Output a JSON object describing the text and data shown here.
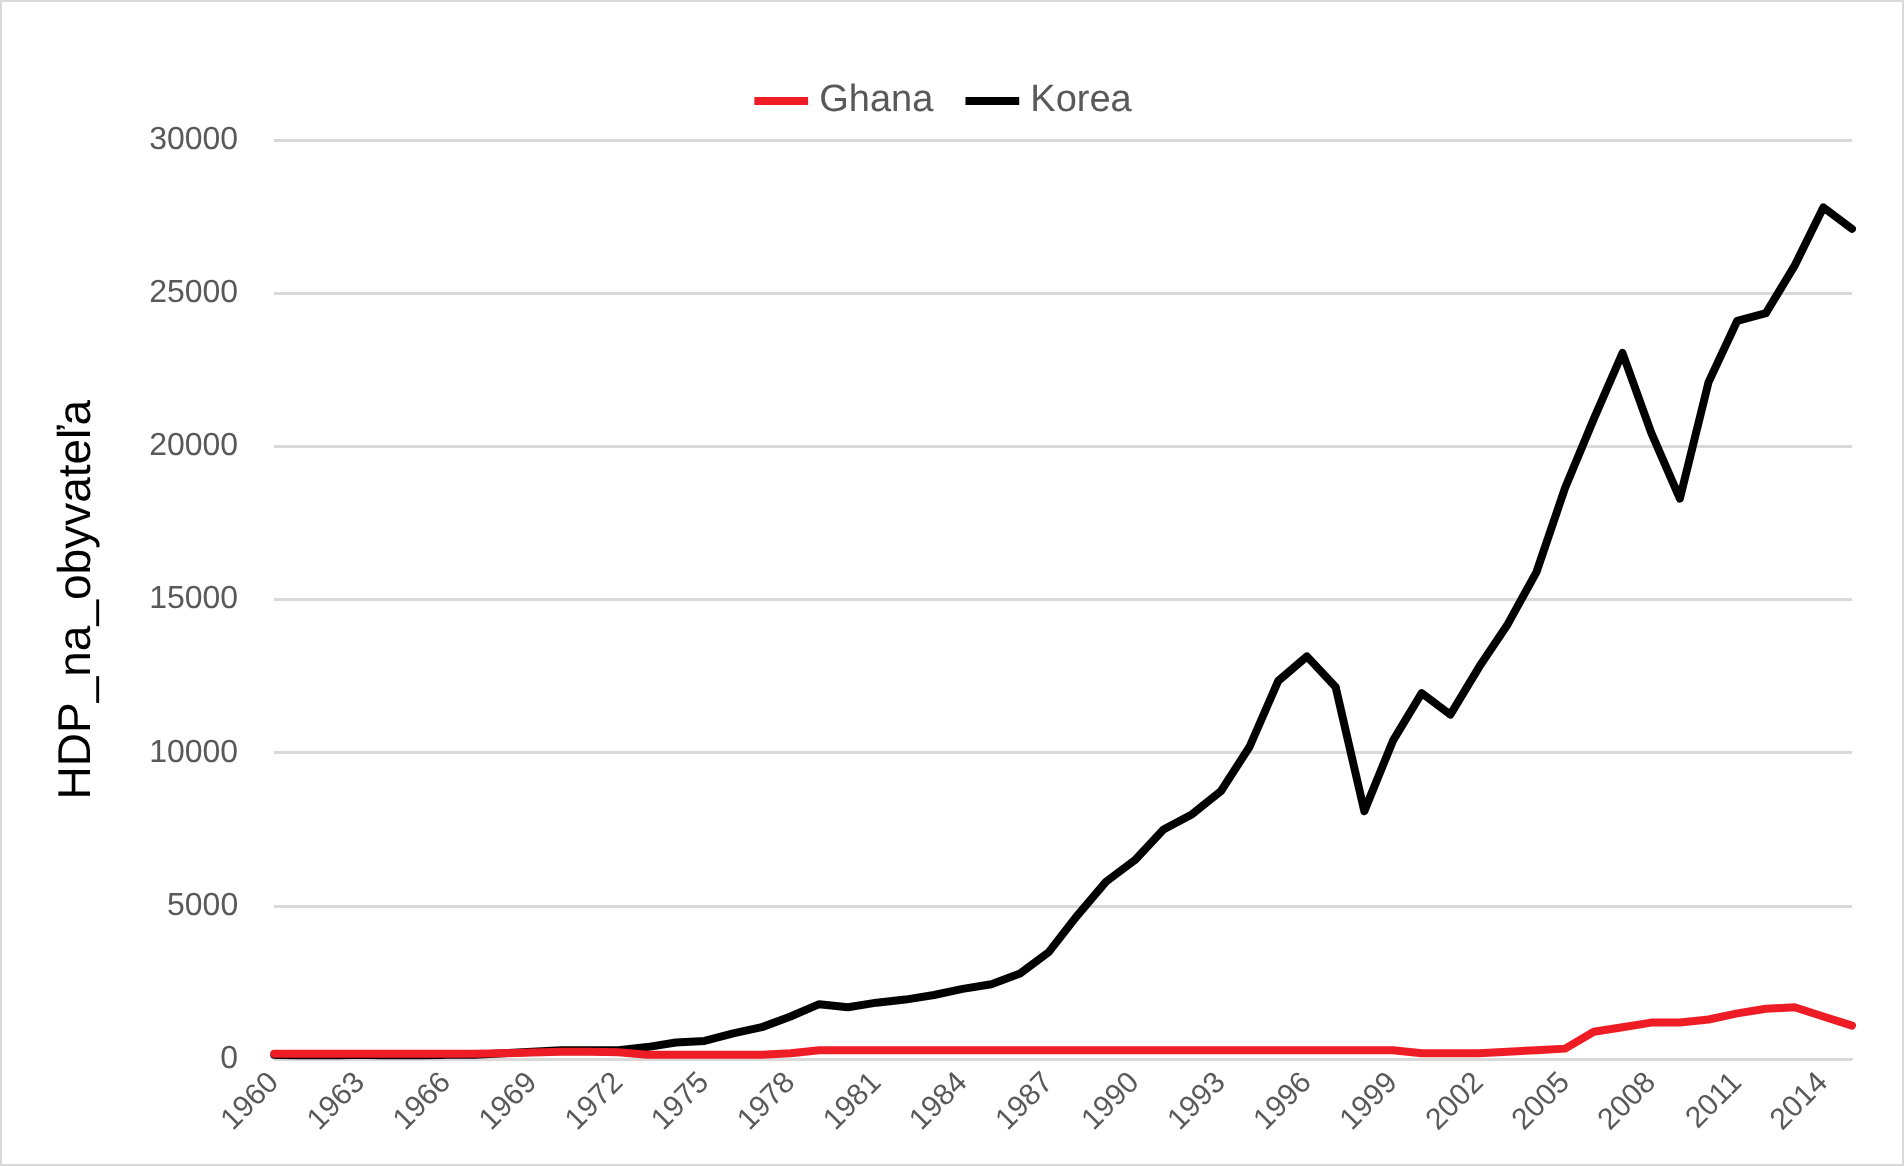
{
  "chart_data": {
    "type": "line",
    "ylabel": "HDP_na_obyvateľa",
    "categories": [
      "1960",
      null,
      null,
      "1963",
      null,
      null,
      "1966",
      null,
      null,
      "1969",
      null,
      null,
      "1972",
      null,
      null,
      "1975",
      null,
      null,
      "1978",
      null,
      null,
      "1981",
      null,
      null,
      "1984",
      null,
      null,
      "1987",
      null,
      null,
      "1990",
      null,
      null,
      "1993",
      null,
      null,
      "1996",
      null,
      null,
      "1999",
      null,
      null,
      "2002",
      null,
      null,
      "2005",
      null,
      null,
      "2008",
      null,
      null,
      "2011",
      null,
      null,
      "2014",
      null
    ],
    "series": [
      {
        "name": "Ghana",
        "color": "#ee1c25",
        "values": [
          180,
          180,
          180,
          180,
          180,
          180,
          180,
          180,
          200,
          220,
          250,
          250,
          230,
          150,
          150,
          150,
          150,
          150,
          200,
          300,
          300,
          300,
          300,
          300,
          300,
          300,
          300,
          300,
          300,
          300,
          300,
          300,
          300,
          300,
          300,
          300,
          300,
          300,
          300,
          300,
          200,
          200,
          200,
          250,
          300,
          350,
          900,
          1050,
          1200,
          1200,
          1300,
          1500,
          1650,
          1700,
          1400,
          1100
        ]
      },
      {
        "name": "Korea",
        "color": "#000000",
        "values": [
          150,
          100,
          100,
          150,
          100,
          100,
          150,
          150,
          200,
          250,
          300,
          300,
          300,
          400,
          550,
          600,
          850,
          1050,
          1400,
          1800,
          1700,
          1850,
          1950,
          2100,
          2300,
          2450,
          2800,
          3500,
          4700,
          5800,
          6500,
          7500,
          8000,
          8750,
          10200,
          12350,
          13150,
          12150,
          8100,
          10400,
          11950,
          11250,
          12800,
          14200,
          15900,
          18650,
          20900,
          23050,
          20450,
          18300,
          22100,
          24100,
          24350,
          25900,
          27800,
          27100
        ]
      }
    ],
    "ylim": [
      0,
      30000
    ],
    "yticks": [
      0,
      5000,
      10000,
      15000,
      20000,
      25000,
      30000
    ],
    "grid": "y",
    "legend": "top",
    "marker": "none",
    "line_style": "solid"
  }
}
